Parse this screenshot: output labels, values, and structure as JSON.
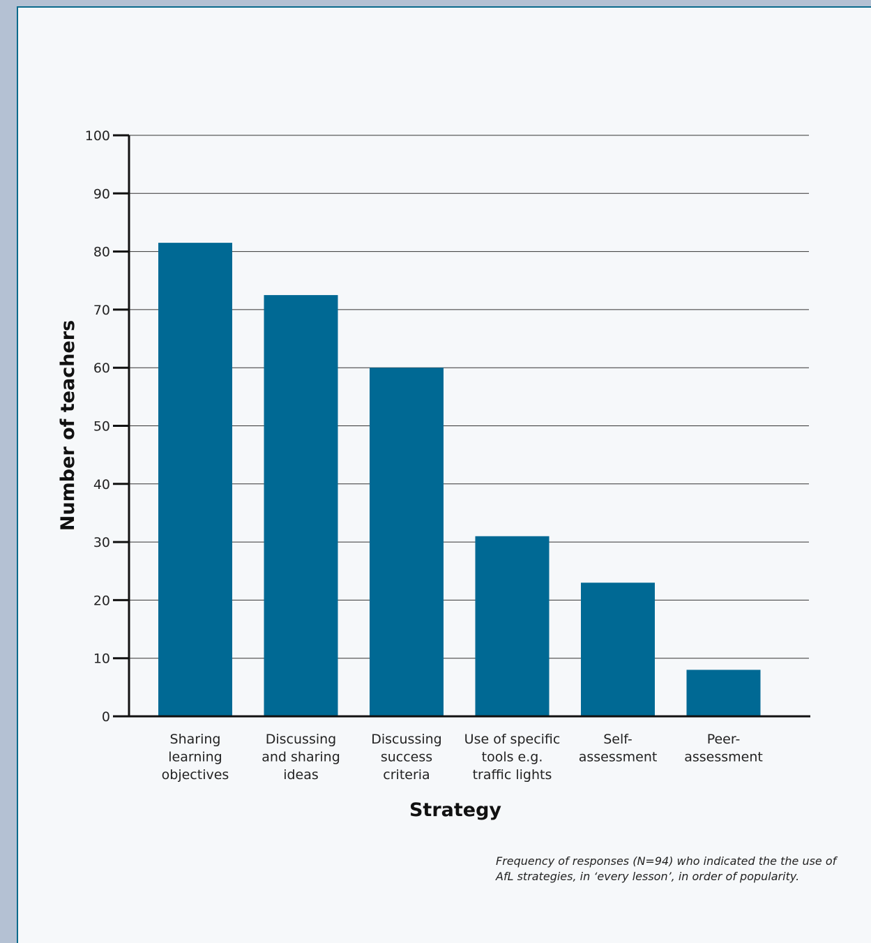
{
  "chart_data": {
    "type": "bar",
    "categories": [
      [
        "Sharing",
        "learning",
        "objectives"
      ],
      [
        "Discussing",
        "and sharing",
        "ideas"
      ],
      [
        "Discussing",
        "success",
        "criteria"
      ],
      [
        "Use of specific",
        "tools e.g.",
        "traffic lights"
      ],
      [
        "Self-",
        "assessment"
      ],
      [
        "Peer-",
        "assessment"
      ]
    ],
    "values": [
      81.5,
      72.5,
      60,
      31,
      23,
      8
    ],
    "xlabel": "Strategy",
    "ylabel": "Number of teachers",
    "ylim": [
      0,
      100
    ],
    "yticks": [
      0,
      10,
      20,
      30,
      40,
      50,
      60,
      70,
      80,
      90,
      100
    ],
    "grid": true,
    "bar_color": "#006994"
  },
  "caption": {
    "line1": "Frequency of responses (N=94) who indicated the the use of",
    "line2": "AfL strategies, in ‘every lesson’, in order of popularity."
  }
}
